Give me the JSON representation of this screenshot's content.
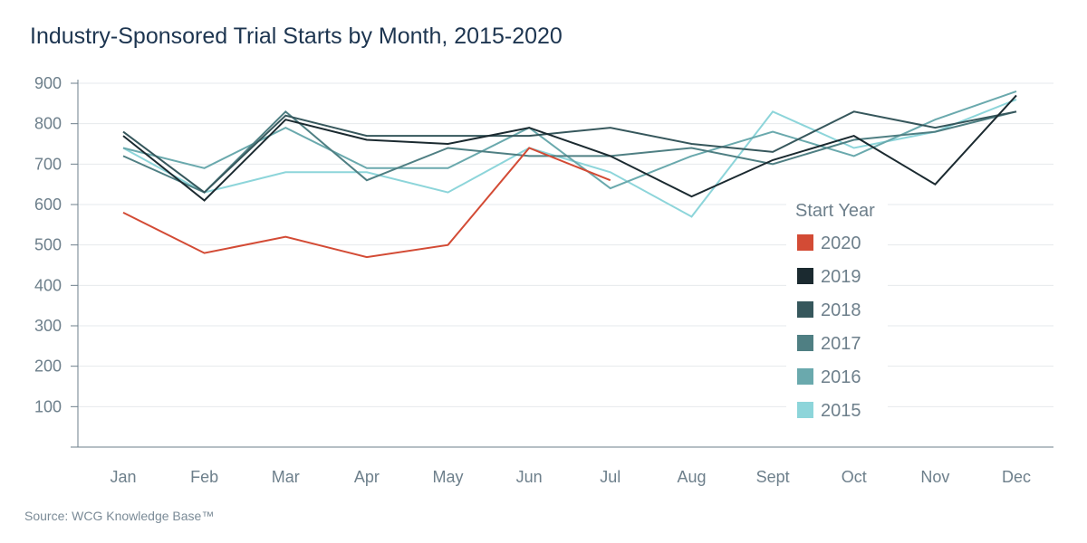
{
  "chart_data": {
    "type": "line",
    "title": "Industry-Sponsored Trial Starts by Month, 2015-2020",
    "source": "Source: WCG Knowledge Base™",
    "xlabel": "",
    "ylabel": "",
    "categories": [
      "Jan",
      "Feb",
      "Mar",
      "Apr",
      "May",
      "Jun",
      "Jul",
      "Aug",
      "Sept",
      "Oct",
      "Nov",
      "Dec"
    ],
    "ylim": [
      0,
      900
    ],
    "yticks": [
      100,
      200,
      300,
      400,
      500,
      600,
      700,
      800,
      900
    ],
    "grid": "horizontal",
    "legend": {
      "title": "Start Year",
      "placement": "right"
    },
    "series": [
      {
        "name": "2020",
        "color": "#d34b35",
        "values": [
          580,
          480,
          520,
          470,
          500,
          740,
          660,
          null,
          null,
          null,
          null,
          null
        ]
      },
      {
        "name": "2019",
        "color": "#1b2a30",
        "values": [
          770,
          610,
          810,
          760,
          750,
          790,
          720,
          620,
          710,
          770,
          650,
          870
        ]
      },
      {
        "name": "2018",
        "color": "#36575c",
        "values": [
          780,
          630,
          820,
          770,
          770,
          770,
          790,
          750,
          730,
          830,
          790,
          830
        ]
      },
      {
        "name": "2017",
        "color": "#4f7f83",
        "values": [
          720,
          630,
          830,
          660,
          740,
          720,
          720,
          740,
          700,
          760,
          780,
          830
        ]
      },
      {
        "name": "2016",
        "color": "#6aa9ad",
        "values": [
          740,
          690,
          790,
          690,
          690,
          790,
          640,
          720,
          780,
          720,
          810,
          880
        ]
      },
      {
        "name": "2015",
        "color": "#8dd5da",
        "values": [
          740,
          630,
          680,
          680,
          630,
          740,
          680,
          570,
          830,
          740,
          780,
          860
        ]
      }
    ]
  }
}
